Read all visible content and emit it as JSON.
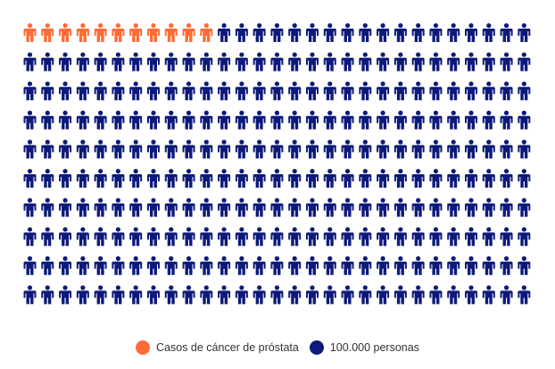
{
  "chart_data": {
    "type": "pictogram",
    "rows": 10,
    "columns": 29,
    "series": [
      {
        "name": "Casos de cáncer de próstata",
        "count": 11,
        "color": "#FF6B35"
      },
      {
        "name": "100.000 personas",
        "count": 279,
        "color": "#0D1A7A"
      }
    ],
    "legend_position": "bottom-center"
  }
}
